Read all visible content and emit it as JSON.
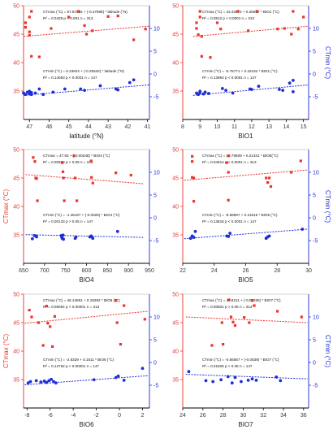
{
  "figure": {
    "colors": {
      "red": "#e8352d",
      "blue": "#1f2fd6",
      "axis": "#000000",
      "frame": "#c7c7c7",
      "tick_label": "#3a3a3a"
    }
  },
  "chart_data": [
    {
      "type": "scatter",
      "xlabel": "latitude (°N)",
      "ylabel": "",
      "ylabel_right": "",
      "xlim": [
        47.3,
        40.9
      ],
      "x_ticks": [
        47,
        46,
        45,
        44,
        43,
        42,
        41
      ],
      "ylim": [
        30,
        50
      ],
      "y_ticks": [
        35,
        40,
        45,
        50
      ],
      "y2lim": [
        -10,
        15
      ],
      "y2_ticks": [
        -5,
        0,
        5,
        10
      ],
      "eq_max": "CTmax (°C) = 57.87854 + (-0.27988) * latitude (°N)",
      "stats_max": "R² = 0.0439   p < 0.001    n = 313",
      "eq_min": "CTmin (°C) = 6.23624 + (-0.25532) * latitude (°N)",
      "stats_min": "R² = 0.14053   p < 0.0001   n = 147",
      "series": [
        {
          "axis": "left",
          "color": "#e8352d",
          "marker": "square",
          "x": [
            47.2,
            47.2,
            47.0,
            47.0,
            47.0,
            46.9,
            46.9,
            46.5,
            45.9,
            45.0,
            44.5,
            44.2,
            44.1,
            43.8,
            43.0,
            42.5,
            41.7,
            41.1
          ],
          "y": [
            47.0,
            46.2,
            48.0,
            45.4,
            44.8,
            41.1,
            49.0,
            41.0,
            46.0,
            48.0,
            49.0,
            46.5,
            45.0,
            45.6,
            48.1,
            48.2,
            44.0,
            45.9
          ],
          "trend": [
            [
              47.3,
              44.6
            ],
            [
              40.9,
              46.4
            ]
          ]
        },
        {
          "axis": "right",
          "color": "#1f2fd6",
          "marker": "circle",
          "x": [
            47.3,
            47.2,
            47.1,
            47.0,
            47.0,
            46.9,
            46.9,
            46.7,
            46.5,
            46.3,
            45.8,
            45.2,
            44.4,
            44.2,
            43.4,
            42.6,
            42.5,
            41.9,
            41.7
          ],
          "y": [
            -4.2,
            -4.5,
            -4.0,
            -4.4,
            -3.8,
            -4.5,
            -4.1,
            -4.2,
            -3.3,
            -4.5,
            -4.0,
            -3.3,
            -3.3,
            -3.6,
            -2.6,
            -3.3,
            -3.5,
            -1.9,
            -1.3
          ],
          "trend": [
            [
              47.3,
              -4.7
            ],
            [
              40.9,
              -2.4
            ]
          ]
        }
      ]
    },
    {
      "type": "scatter",
      "xlabel": "BIO1",
      "ylabel": "",
      "ylabel_right": "CTmin (°C)",
      "xlim": [
        8,
        15.3
      ],
      "x_ticks": [
        8,
        9,
        10,
        11,
        12,
        13,
        14,
        15
      ],
      "ylim": [
        30,
        50
      ],
      "y_ticks": [
        35,
        40,
        45,
        50
      ],
      "y2lim": [
        -10,
        15
      ],
      "y2_ticks": [
        -5,
        0,
        5,
        10
      ],
      "eq_max": "CTmax (°C) = 42.33674 + 0.25617 * BIO1 (°C)",
      "stats_max": "R² = 0.0512   p < 0.0001   n = 313",
      "eq_min": "CTmin (°C) = -5.75771 + 0.22432 * BIO1 (°C)",
      "stats_min": "R² = 0.13954   p < 0.0001   n = 147",
      "series": [
        {
          "axis": "left",
          "color": "#e8352d",
          "marker": "square",
          "x": [
            8.8,
            8.8,
            8.9,
            9.0,
            9.0,
            9.1,
            9.1,
            9.6,
            10.0,
            10.2,
            11.2,
            11.8,
            12.3,
            13.5,
            13.9,
            14.3,
            14.4,
            14.7,
            15.0
          ],
          "y": [
            47.0,
            46.0,
            44.9,
            49.0,
            48.0,
            41.1,
            44.6,
            40.9,
            47.0,
            45.9,
            49.0,
            45.6,
            49.0,
            45.9,
            46.0,
            45.0,
            49.0,
            45.9,
            48.0
          ],
          "trend": [
            [
              8.6,
              44.6
            ],
            [
              15.3,
              46.4
            ]
          ]
        },
        {
          "axis": "right",
          "color": "#1f2fd6",
          "marker": "circle",
          "x": [
            8.8,
            8.9,
            9.0,
            9.0,
            9.2,
            9.3,
            9.5,
            10.3,
            10.5,
            10.9,
            11.9,
            12.0,
            12.4,
            13.6,
            13.8,
            14.2,
            14.4,
            14.4
          ],
          "y": [
            -4.2,
            -4.5,
            -4.1,
            -3.8,
            -4.4,
            -4.0,
            -4.3,
            -3.2,
            -3.6,
            -4.2,
            -3.3,
            -3.4,
            -2.7,
            -3.4,
            -3.6,
            -2.0,
            -1.4,
            -3.9
          ],
          "trend": [
            [
              8.6,
              -4.7
            ],
            [
              15.3,
              -2.4
            ]
          ]
        }
      ]
    },
    {
      "type": "scatter",
      "xlabel": "BIO4",
      "ylabel": "CTmax (°C)",
      "ylabel_right": "",
      "xlim": [
        650,
        950
      ],
      "x_ticks": [
        650,
        700,
        750,
        800,
        850,
        900,
        950
      ],
      "ylim": [
        30,
        50
      ],
      "y_ticks": [
        35,
        40,
        45,
        50
      ],
      "y2lim": [
        -10,
        15
      ],
      "y2_ticks": [
        -5,
        0,
        5,
        10
      ],
      "eq_max": "CTmax = 47.93 + (-0.00348) * BIO4 (°C)",
      "stats_max": "R² = 0.00668   p > 0.05   n = 313",
      "eq_min": "CTmin (°C) = -1.45197 + (-0.0025) * BIO4 (°C)",
      "stats_min": "R² = 0.00133   p > 0.05   n = 147",
      "series": [
        {
          "axis": "left",
          "color": "#e8352d",
          "marker": "square",
          "x": [
            673,
            677,
            679,
            681,
            683,
            742,
            744,
            745,
            747,
            770,
            773,
            777,
            811,
            812,
            815,
            870,
            906
          ],
          "y": [
            48.6,
            47.9,
            45.0,
            44.9,
            41.0,
            47.7,
            46.1,
            45.0,
            41.0,
            48.9,
            45.0,
            41.0,
            48.0,
            45.1,
            44.1,
            45.9,
            45.5
          ],
          "trend": [
            [
              655,
              45.6
            ],
            [
              935,
              44.0
            ]
          ]
        },
        {
          "axis": "right",
          "color": "#1f2fd6",
          "marker": "circle",
          "x": [
            671,
            676,
            680,
            681,
            740,
            741,
            742,
            744,
            745,
            773,
            775,
            808,
            811,
            813,
            815,
            874
          ],
          "y": [
            -4.6,
            -3.9,
            -4.0,
            -4.2,
            -3.9,
            -4.2,
            -4.5,
            -3.8,
            -4.7,
            -4.5,
            -4.2,
            -4.2,
            -4.0,
            -4.2,
            -4.5,
            -3.0
          ],
          "trend": [
            [
              655,
              -3.7
            ],
            [
              935,
              -4.3
            ]
          ]
        }
      ]
    },
    {
      "type": "scatter",
      "xlabel": "BIO5",
      "ylabel": "",
      "ylabel_right": "CTmin (°C)",
      "xlim": [
        22,
        30
      ],
      "x_ticks": [
        22,
        24,
        26,
        28,
        30
      ],
      "ylim": [
        30,
        50
      ],
      "y_ticks": [
        35,
        40,
        45,
        50
      ],
      "y2lim": [
        -10,
        15
      ],
      "y2_ticks": [
        -5,
        0,
        5,
        10
      ],
      "eq_max": "CTmax (°C) = 39.79509 + 0.21331 * BIO5(°C)",
      "stats_max": "R² = 0.04614   p < 0.0001   n = 313",
      "eq_min": "CTmin (°C) = -8.69557 + 0.21815 * BIO5 (°C)",
      "stats_min": "R² = 0.13616   p < 0.0001   n = 147",
      "series": [
        {
          "axis": "left",
          "color": "#e8352d",
          "marker": "square",
          "x": [
            22.6,
            22.6,
            22.6,
            22.7,
            22.7,
            24.8,
            24.9,
            24.9,
            24.9,
            27.3,
            27.4,
            27.5,
            27.6,
            28.9,
            29.5
          ],
          "y": [
            48.8,
            47.9,
            45.1,
            45.0,
            40.9,
            47.7,
            48.9,
            46.0,
            41.1,
            45.0,
            44.2,
            45.0,
            43.5,
            46.0,
            48.0
          ],
          "trend": [
            [
              22.1,
              44.6
            ],
            [
              29.9,
              46.4
            ]
          ]
        },
        {
          "axis": "right",
          "color": "#1f2fd6",
          "marker": "circle",
          "x": [
            22.5,
            22.6,
            22.7,
            22.8,
            24.8,
            24.9,
            25.0,
            27.3,
            27.4,
            27.5,
            29.6
          ],
          "y": [
            -4.5,
            -4.0,
            -4.3,
            -3.0,
            -4.0,
            -4.1,
            -3.4,
            -4.5,
            -4.2,
            -4.0,
            -2.5
          ],
          "trend": [
            [
              22.1,
              -4.6
            ],
            [
              29.9,
              -2.5
            ]
          ]
        }
      ]
    },
    {
      "type": "scatter",
      "xlabel": "BIO6",
      "ylabel": "CTmax (°C)",
      "ylabel_right": "",
      "xlim": [
        -8.3,
        2.6
      ],
      "x_ticks": [
        -8,
        -6,
        -4,
        -2,
        0,
        2
      ],
      "ylim": [
        30,
        50
      ],
      "y_ticks": [
        35,
        40,
        45,
        50
      ],
      "y2lim": [
        -10,
        15
      ],
      "y2_ticks": [
        -5,
        0,
        5,
        10
      ],
      "eq_max": "CTmax (°C) = 46.14561 + 0.19292 * BIO6 (°C)",
      "stats_max": "R² = 0.06054   p < 0.00001   n = 313",
      "eq_min": "CTmin (°C) = -2.6329 + 0.1511 * BIO6 (°C)",
      "stats_min": "R² = 0.12752   p < 0.00001   n = 147",
      "series": [
        {
          "axis": "left",
          "color": "#e8352d",
          "marker": "square",
          "x": [
            -7.8,
            -7.6,
            -7.0,
            -6.6,
            -6.3,
            -6.2,
            -6.0,
            -5.8,
            -5.6,
            -0.3,
            -0.2,
            0.1,
            0.4,
            2.2
          ],
          "y": [
            47.2,
            46.0,
            45.0,
            41.0,
            47.9,
            44.9,
            44.3,
            40.8,
            46.1,
            48.9,
            45.0,
            41.2,
            48.0,
            45.6
          ],
          "trend": [
            [
              -8.2,
              44.9
            ],
            [
              2.5,
              47.0
            ]
          ]
        },
        {
          "axis": "right",
          "color": "#1f2fd6",
          "marker": "circle",
          "x": [
            -7.9,
            -7.7,
            -7.2,
            -6.8,
            -6.5,
            -6.3,
            -6.1,
            -5.9,
            -5.7,
            -5.5,
            -2.2,
            -0.3,
            -0.1,
            0.4,
            2.0
          ],
          "y": [
            -4.5,
            -4.2,
            -4.0,
            -4.3,
            -4.1,
            -4.4,
            -4.0,
            -3.7,
            -4.2,
            -4.5,
            -3.8,
            -3.3,
            -3.0,
            -3.9,
            -1.3
          ],
          "trend": [
            [
              -8.2,
              -4.9
            ],
            [
              2.5,
              -2.9
            ]
          ]
        }
      ]
    },
    {
      "type": "scatter",
      "xlabel": "BIO7",
      "ylabel": "",
      "ylabel_right": "CTmin (°C)",
      "xlim": [
        24,
        36.5
      ],
      "x_ticks": [
        24,
        26,
        28,
        30,
        32,
        34,
        36
      ],
      "ylim": [
        30,
        50
      ],
      "y_ticks": [
        35,
        40,
        45,
        50
      ],
      "y2lim": [
        -10,
        15
      ],
      "y2_ticks": [
        -5,
        0,
        5,
        10
      ],
      "eq_max": "CTmax (°C) = 47.8211 + (-0.08336) * BIO7 (°C)",
      "stats_max": "R² = 0.00501   p > 0.05   n = 313",
      "eq_min": "CTmin (°C) = -0.56567 + (-0.0839) * BIO7 (°C)",
      "stats_min": "R² = 0.01506   p > 0.05   n = 147",
      "series": [
        {
          "axis": "left",
          "color": "#e8352d",
          "marker": "square",
          "x": [
            26.9,
            27.9,
            28.0,
            28.6,
            28.8,
            29.0,
            29.2,
            30.1,
            30.6,
            30.9,
            31.1,
            33.4,
            35.8
          ],
          "y": [
            41.0,
            45.0,
            41.2,
            49.0,
            46.0,
            45.1,
            44.5,
            45.9,
            45.0,
            48.9,
            48.0,
            47.0,
            46.0
          ],
          "trend": [
            [
              24.3,
              46.0
            ],
            [
              36.4,
              45.0
            ]
          ]
        },
        {
          "axis": "right",
          "color": "#1f2fd6",
          "marker": "circle",
          "x": [
            24.6,
            26.3,
            27.0,
            27.8,
            28.5,
            28.9,
            29.2,
            29.8,
            30.5,
            30.9,
            31.3,
            33.3,
            33.7
          ],
          "y": [
            -2.0,
            -4.0,
            -4.2,
            -3.8,
            -3.1,
            -4.5,
            -3.3,
            -4.2,
            -3.9,
            -3.6,
            -3.9,
            -3.2,
            -4.0
          ],
          "trend": [
            [
              24.3,
              -2.6
            ],
            [
              36.4,
              -3.6
            ]
          ]
        }
      ]
    }
  ]
}
